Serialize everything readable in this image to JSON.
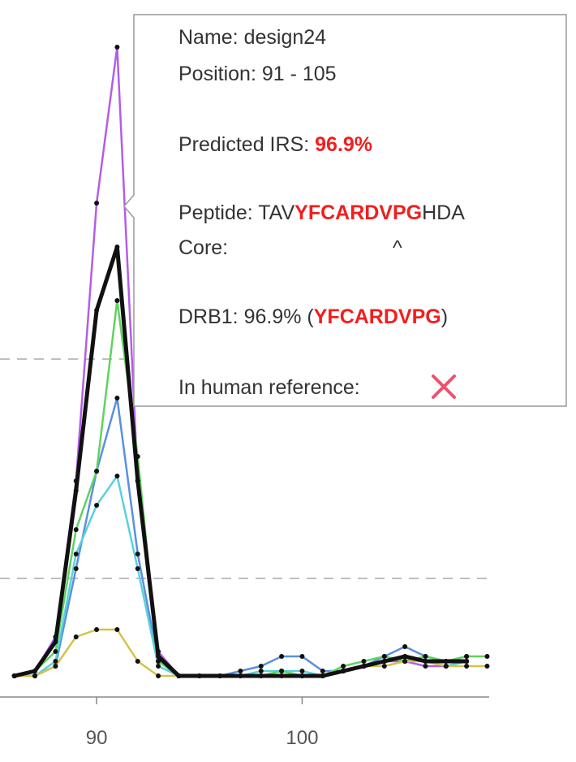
{
  "chart_data": {
    "type": "line",
    "x": [
      86,
      87,
      88,
      89,
      90,
      91,
      92,
      93,
      94,
      95,
      96,
      97,
      98,
      99,
      100,
      101,
      102,
      103,
      104,
      105,
      106,
      107,
      108,
      109
    ],
    "xlim": [
      85.3,
      109.1
    ],
    "xticks": [
      90,
      100
    ],
    "ylim": [
      -5,
      138
    ],
    "hlines": [
      65,
      20
    ],
    "series": [
      {
        "color": "#b35de8",
        "values": [
          0,
          1,
          8,
          40,
          97,
          129,
          40,
          5,
          0,
          0,
          0,
          0,
          0,
          0,
          0,
          0,
          1,
          2,
          3,
          3,
          2,
          2,
          3,
          null
        ]
      },
      {
        "color": "#5b8fe0",
        "values": [
          0,
          0,
          2,
          22,
          42,
          57,
          25,
          3,
          0,
          0,
          0,
          1,
          2,
          4,
          4,
          1,
          1,
          2,
          4,
          6,
          4,
          3,
          4,
          null
        ]
      },
      {
        "color": "#5ad0dc",
        "values": [
          0,
          0,
          3,
          25,
          35,
          41,
          22,
          2,
          0,
          0,
          0,
          0,
          1,
          1,
          1,
          0,
          1,
          2,
          3,
          4,
          3,
          2,
          3,
          null
        ]
      },
      {
        "color": "#5fd35f",
        "values": [
          0,
          1,
          5,
          30,
          42,
          77,
          45,
          3,
          0,
          0,
          0,
          0,
          0,
          1,
          0,
          0,
          2,
          3,
          4,
          3,
          4,
          3,
          4,
          4
        ]
      },
      {
        "color": "#d4c24a",
        "values": [
          0,
          0,
          2,
          8,
          9.5,
          9.5,
          3,
          0,
          0,
          0,
          0,
          0,
          0,
          0,
          0,
          0,
          1,
          2,
          2,
          3,
          3,
          2,
          2,
          2
        ]
      },
      {
        "color": "#111111",
        "values": [
          0,
          1,
          7,
          38,
          75,
          88,
          40,
          4,
          0,
          0,
          0,
          0,
          0,
          0,
          0,
          0,
          1,
          2,
          3,
          4,
          3,
          3,
          3,
          null
        ]
      }
    ],
    "tooltip": {
      "name": "Name: design24",
      "position": "Position: 91 - 105",
      "irs_label": "Predicted IRS:",
      "irs_value": "96.9%",
      "peptide": [
        "Peptide: TAV",
        "YFCARDVPG",
        "HDA"
      ],
      "core_label": "Core:",
      "core_marker": "^",
      "drb1": [
        "DRB1: 96.9% (",
        "YFCARDVPG",
        ")"
      ],
      "reference_label": "In human reference:"
    }
  }
}
